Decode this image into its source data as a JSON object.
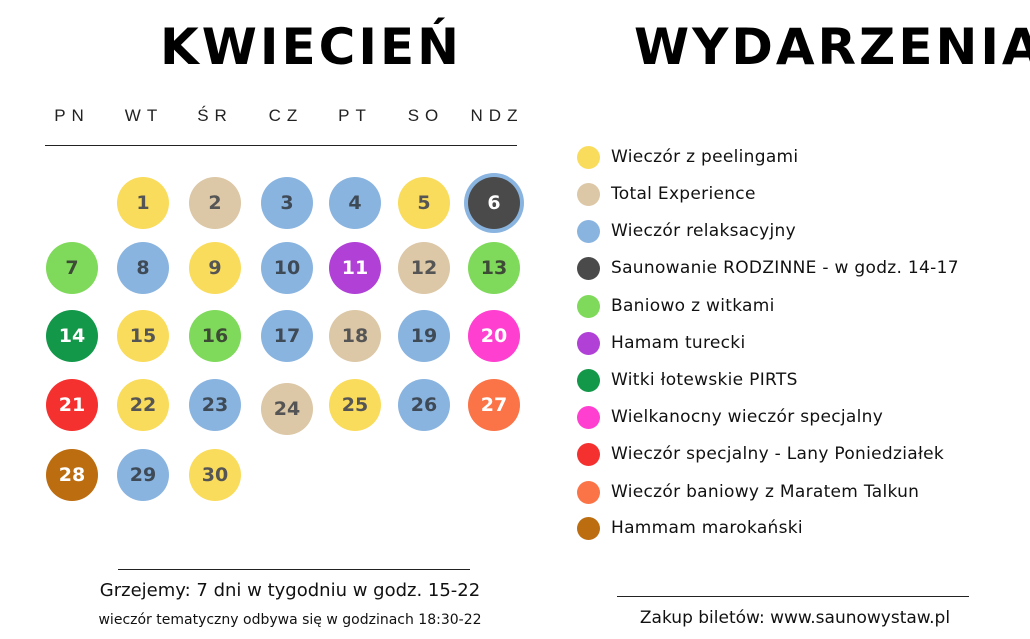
{
  "calendar": {
    "month": "KWIECIEŃ",
    "weekdays": [
      "PN",
      "WT",
      "ŚR",
      "CZ",
      "PT",
      "SO",
      "NDZ"
    ],
    "days": [
      {
        "day": "1",
        "event": "Wieczór z peelingami"
      },
      {
        "day": "2",
        "event": "Total Experience"
      },
      {
        "day": "3",
        "event": "Wieczór relaksacyjny"
      },
      {
        "day": "4",
        "event": "Wieczór relaksacyjny"
      },
      {
        "day": "5",
        "event": "Wieczór z peelingami"
      },
      {
        "day": "6",
        "event": "Saunowanie RODZINNE - w godz. 14-17",
        "highlighted": true
      },
      {
        "day": "7",
        "event": "Baniowo z witkami"
      },
      {
        "day": "8",
        "event": "Wieczór relaksacyjny"
      },
      {
        "day": "9",
        "event": "Wieczór z peelingami"
      },
      {
        "day": "10",
        "event": "Wieczór relaksacyjny"
      },
      {
        "day": "11",
        "event": "Hamam turecki"
      },
      {
        "day": "12",
        "event": "Total Experience"
      },
      {
        "day": "13",
        "event": "Baniowo z witkami"
      },
      {
        "day": "14",
        "event": "Witki łotewskie PIRTS"
      },
      {
        "day": "15",
        "event": "Wieczór z peelingami"
      },
      {
        "day": "16",
        "event": "Baniowo z witkami"
      },
      {
        "day": "17",
        "event": "Wieczór relaksacyjny"
      },
      {
        "day": "18",
        "event": "Total Experience"
      },
      {
        "day": "19",
        "event": "Wieczór relaksacyjny"
      },
      {
        "day": "20",
        "event": "Wielkanocny wieczór specjalny"
      },
      {
        "day": "21",
        "event": "Wieczór specjalny - Lany Poniedziałek"
      },
      {
        "day": "22",
        "event": "Wieczór z peelingami"
      },
      {
        "day": "23",
        "event": "Wieczór relaksacyjny"
      },
      {
        "day": "24",
        "event": "Total Experience"
      },
      {
        "day": "25",
        "event": "Wieczór z peelingami"
      },
      {
        "day": "26",
        "event": "Wieczór relaksacyjny"
      },
      {
        "day": "27",
        "event": "Wieczór baniowy z Maratem Talkun"
      },
      {
        "day": "28",
        "event": "Hammam marokański"
      },
      {
        "day": "29",
        "event": "Wieczór relaksacyjny"
      },
      {
        "day": "30",
        "event": "Wieczór z peelingami"
      }
    ]
  },
  "events": {
    "title": "WYDARZENIA",
    "items": [
      {
        "label": "Wieczór z peelingami",
        "color": "#f9dc5c",
        "text_color": "#555555"
      },
      {
        "label": "Total Experience",
        "color": "#dcc7a6",
        "text_color": "#555555"
      },
      {
        "label": "Wieczór relaksacyjny",
        "color": "#8ab4e0",
        "text_color": "#3f4a57"
      },
      {
        "label": "Saunowanie RODZINNE - w godz. 14-17",
        "color": "#4a4a4a",
        "text_color": "#ffffff"
      },
      {
        "label": "Baniowo z witkami",
        "color": "#7fd95a",
        "text_color": "#3d4a36"
      },
      {
        "label": "Hamam turecki",
        "color": "#b040d6",
        "text_color": "#ffffff"
      },
      {
        "label": "Witki łotewskie PIRTS",
        "color": "#13984a",
        "text_color": "#ffffff"
      },
      {
        "label": "Wielkanocny wieczór specjalny",
        "color": "#ff3fd0",
        "text_color": "#ffffff"
      },
      {
        "label": "Wieczór specjalny - Lany Poniedziałek",
        "color": "#f5312f",
        "text_color": "#ffffff"
      },
      {
        "label": "Wieczór baniowy z Maratem Talkun",
        "color": "#fa7448",
        "text_color": "#ffffff"
      },
      {
        "label": "Hammam marokański",
        "color": "#bc6d10",
        "text_color": "#ffffff"
      }
    ]
  },
  "footer": {
    "hours": "Grzejemy: 7 dni w tygodniu w godz. 15-22",
    "theme_hours": "wieczór tematyczny odbywa się w godzinach 18:30-22",
    "tickets": "Zakup biletów: www.saunowystaw.pl"
  }
}
